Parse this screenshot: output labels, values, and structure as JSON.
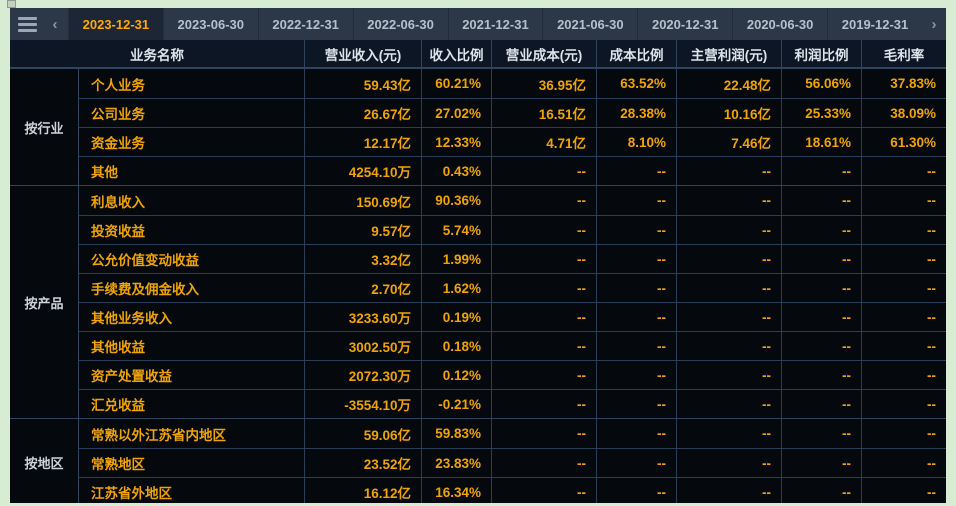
{
  "toolbar": {
    "prev_label": "‹",
    "next_label": "›",
    "tabs": [
      {
        "label": "2023-12-31",
        "selected": true
      },
      {
        "label": "2023-06-30",
        "selected": false
      },
      {
        "label": "2022-12-31",
        "selected": false
      },
      {
        "label": "2022-06-30",
        "selected": false
      },
      {
        "label": "2021-12-31",
        "selected": false
      },
      {
        "label": "2021-06-30",
        "selected": false
      },
      {
        "label": "2020-12-31",
        "selected": false
      },
      {
        "label": "2020-06-30",
        "selected": false
      },
      {
        "label": "2019-12-31",
        "selected": false
      }
    ]
  },
  "colors": {
    "accent_orange": "#efa404",
    "tabbar_bg": "#2c3848",
    "selected_tab_bg": "#1c2635",
    "selected_tab_text": "#ffaa00",
    "grid_line": "#2c3e57",
    "header_bg": "#0d1624",
    "table_bg": "#05080c",
    "page_bg": "#d8ebd3"
  },
  "table": {
    "headers": [
      "业务名称",
      "营业收入(元)",
      "收入比例",
      "营业成本(元)",
      "成本比例",
      "主营利润(元)",
      "利润比例",
      "毛利率"
    ],
    "groups": [
      {
        "label": "按行业",
        "rows": [
          {
            "name": "个人业务",
            "values": [
              "59.43亿",
              "60.21%",
              "36.95亿",
              "63.52%",
              "22.48亿",
              "56.06%",
              "37.83%"
            ]
          },
          {
            "name": "公司业务",
            "values": [
              "26.67亿",
              "27.02%",
              "16.51亿",
              "28.38%",
              "10.16亿",
              "25.33%",
              "38.09%"
            ]
          },
          {
            "name": "资金业务",
            "values": [
              "12.17亿",
              "12.33%",
              "4.71亿",
              "8.10%",
              "7.46亿",
              "18.61%",
              "61.30%"
            ]
          },
          {
            "name": "其他",
            "values": [
              "4254.10万",
              "0.43%",
              "--",
              "--",
              "--",
              "--",
              "--"
            ]
          }
        ]
      },
      {
        "label": "按产品",
        "rows": [
          {
            "name": "利息收入",
            "values": [
              "150.69亿",
              "90.36%",
              "--",
              "--",
              "--",
              "--",
              "--"
            ]
          },
          {
            "name": "投资收益",
            "values": [
              "9.57亿",
              "5.74%",
              "--",
              "--",
              "--",
              "--",
              "--"
            ]
          },
          {
            "name": "公允价值变动收益",
            "values": [
              "3.32亿",
              "1.99%",
              "--",
              "--",
              "--",
              "--",
              "--"
            ]
          },
          {
            "name": "手续费及佣金收入",
            "values": [
              "2.70亿",
              "1.62%",
              "--",
              "--",
              "--",
              "--",
              "--"
            ]
          },
          {
            "name": "其他业务收入",
            "values": [
              "3233.60万",
              "0.19%",
              "--",
              "--",
              "--",
              "--",
              "--"
            ]
          },
          {
            "name": "其他收益",
            "values": [
              "3002.50万",
              "0.18%",
              "--",
              "--",
              "--",
              "--",
              "--"
            ]
          },
          {
            "name": "资产处置收益",
            "values": [
              "2072.30万",
              "0.12%",
              "--",
              "--",
              "--",
              "--",
              "--"
            ]
          },
          {
            "name": "汇兑收益",
            "values": [
              "-3554.10万",
              "-0.21%",
              "--",
              "--",
              "--",
              "--",
              "--"
            ]
          }
        ]
      },
      {
        "label": "按地区",
        "rows": [
          {
            "name": "常熟以外江苏省内地区",
            "values": [
              "59.06亿",
              "59.83%",
              "--",
              "--",
              "--",
              "--",
              "--"
            ]
          },
          {
            "name": "常熟地区",
            "values": [
              "23.52亿",
              "23.83%",
              "--",
              "--",
              "--",
              "--",
              "--"
            ]
          },
          {
            "name": "江苏省外地区",
            "values": [
              "16.12亿",
              "16.34%",
              "--",
              "--",
              "--",
              "--",
              "--"
            ]
          }
        ]
      }
    ]
  }
}
